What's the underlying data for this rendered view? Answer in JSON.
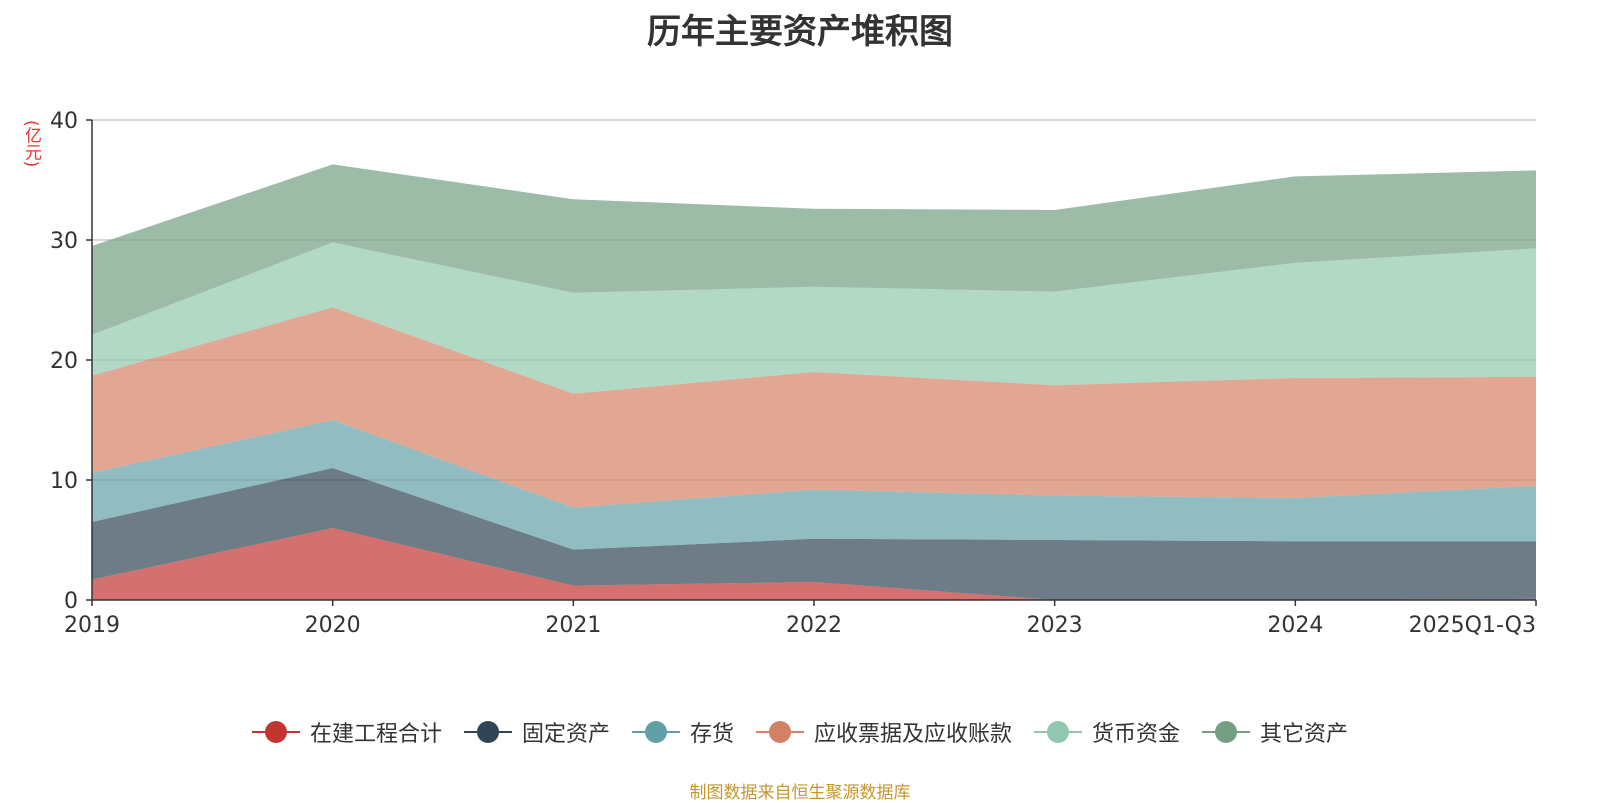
{
  "title": "历年主要资产堆积图",
  "unit": "(亿元)",
  "source": "制图数据来自恒生聚源数据库",
  "chart_data": {
    "type": "area",
    "stacked": true,
    "title": "历年主要资产堆积图",
    "ylabel": "(亿元)",
    "categories": [
      "2019",
      "2020",
      "2021",
      "2022",
      "2023",
      "2024",
      "2025Q1-Q3"
    ],
    "ylim": [
      0,
      40
    ],
    "yticks": [
      0,
      10,
      20,
      30,
      40
    ],
    "grid": true,
    "legend_position": "bottom",
    "series": [
      {
        "name": "在建工程合计",
        "color": "#c23531",
        "values": [
          1.7,
          6.0,
          1.2,
          1.5,
          0.0,
          0.0,
          0.1
        ]
      },
      {
        "name": "固定资产",
        "color": "#2f4554",
        "values": [
          4.8,
          5.0,
          3.0,
          3.6,
          5.0,
          4.9,
          4.8
        ]
      },
      {
        "name": "存货",
        "color": "#61a0a8",
        "values": [
          4.1,
          4.0,
          3.5,
          4.1,
          3.7,
          3.6,
          4.6
        ]
      },
      {
        "name": "应收票据及应收账款",
        "color": "#d48265",
        "values": [
          8.1,
          9.4,
          9.5,
          9.8,
          9.2,
          10.0,
          9.1
        ]
      },
      {
        "name": "货币资金",
        "color": "#91c7ae",
        "values": [
          3.4,
          5.4,
          8.4,
          7.1,
          7.8,
          9.6,
          10.7
        ]
      },
      {
        "name": "其它资产",
        "color": "#749f83",
        "values": [
          7.4,
          6.5,
          7.8,
          6.5,
          6.8,
          7.2,
          6.5
        ]
      }
    ]
  }
}
